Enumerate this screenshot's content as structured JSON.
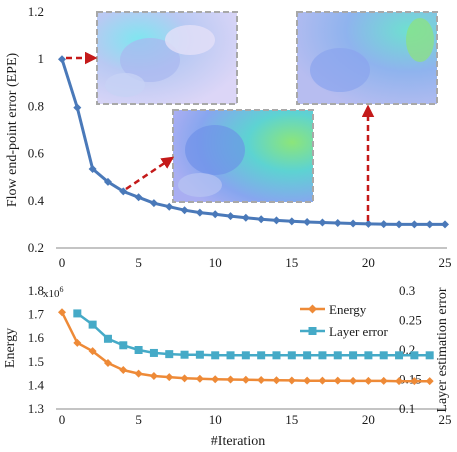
{
  "colors": {
    "epe_line": "#4a79b9",
    "energy": "#ee8a37",
    "layer_error": "#45aac7",
    "arrow": "#c41a1a",
    "inset_border": "#a8a8a8",
    "axis": "#888888"
  },
  "chart_data": [
    {
      "type": "line",
      "title": "",
      "xlabel": "",
      "ylabel": "Flow end-point error (EPE)",
      "xlim": [
        0,
        25
      ],
      "ylim": [
        0.2,
        1.2
      ],
      "xticks": [
        "0",
        "5",
        "10",
        "15",
        "20",
        "25"
      ],
      "yticks": [
        "0.2",
        "0.4",
        "0.6",
        "0.8",
        "1",
        "1.2"
      ],
      "x": [
        0,
        1,
        2,
        3,
        4,
        5,
        6,
        7,
        8,
        9,
        10,
        11,
        12,
        13,
        14,
        15,
        16,
        17,
        18,
        19,
        20,
        21,
        22,
        23,
        24,
        25
      ],
      "series": [
        {
          "values": [
            1.0,
            0.795,
            0.535,
            0.48,
            0.44,
            0.415,
            0.39,
            0.375,
            0.36,
            0.35,
            0.343,
            0.335,
            0.328,
            0.322,
            0.317,
            0.313,
            0.31,
            0.308,
            0.306,
            0.304,
            0.302,
            0.301,
            0.3,
            0.3,
            0.3,
            0.3
          ]
        }
      ],
      "insets": [
        {
          "name": "flow-field-iter-0",
          "arrow_from_x": 0
        },
        {
          "name": "flow-field-iter-4",
          "arrow_from_x": 4
        },
        {
          "name": "flow-field-iter-20",
          "arrow_from_x": 20
        }
      ]
    },
    {
      "type": "line",
      "title": "",
      "xlabel": "#Iteration",
      "ylabel": "Energy",
      "y2label": "Layer estimation error",
      "y_multiplier": "x10",
      "y_multiplier_exp": "6",
      "xlim": [
        0,
        25
      ],
      "ylim": [
        1.3,
        1.8
      ],
      "y2lim": [
        0.1,
        0.3
      ],
      "xticks": [
        "0",
        "5",
        "10",
        "15",
        "20",
        "25"
      ],
      "yticks": [
        "1.3",
        "1.4",
        "1.5",
        "1.6",
        "1.7",
        "1.8"
      ],
      "y2ticks": [
        "0.1",
        "0.15",
        "0.2",
        "0.25",
        "0.3"
      ],
      "legend_position": "top-right",
      "series": [
        {
          "name": "Energy",
          "axis": "left",
          "marker": "diamond",
          "x": [
            0,
            1,
            2,
            3,
            4,
            5,
            6,
            7,
            8,
            9,
            10,
            11,
            12,
            13,
            14,
            15,
            16,
            17,
            18,
            19,
            20,
            21,
            22,
            23,
            24
          ],
          "values": [
            1.71,
            1.58,
            1.545,
            1.495,
            1.465,
            1.45,
            1.44,
            1.435,
            1.43,
            1.428,
            1.426,
            1.425,
            1.424,
            1.423,
            1.422,
            1.421,
            1.42,
            1.42,
            1.42,
            1.419,
            1.419,
            1.419,
            1.418,
            1.418,
            1.418
          ]
        },
        {
          "name": "Layer error",
          "axis": "right",
          "marker": "square",
          "x": [
            1,
            2,
            3,
            4,
            5,
            6,
            7,
            8,
            9,
            10,
            11,
            12,
            13,
            14,
            15,
            16,
            17,
            18,
            19,
            20,
            21,
            22,
            23,
            24
          ],
          "values": [
            0.262,
            0.243,
            0.219,
            0.208,
            0.2,
            0.195,
            0.193,
            0.192,
            0.192,
            0.191,
            0.191,
            0.191,
            0.191,
            0.191,
            0.191,
            0.191,
            0.191,
            0.191,
            0.191,
            0.191,
            0.191,
            0.191,
            0.191,
            0.191
          ]
        }
      ]
    }
  ]
}
